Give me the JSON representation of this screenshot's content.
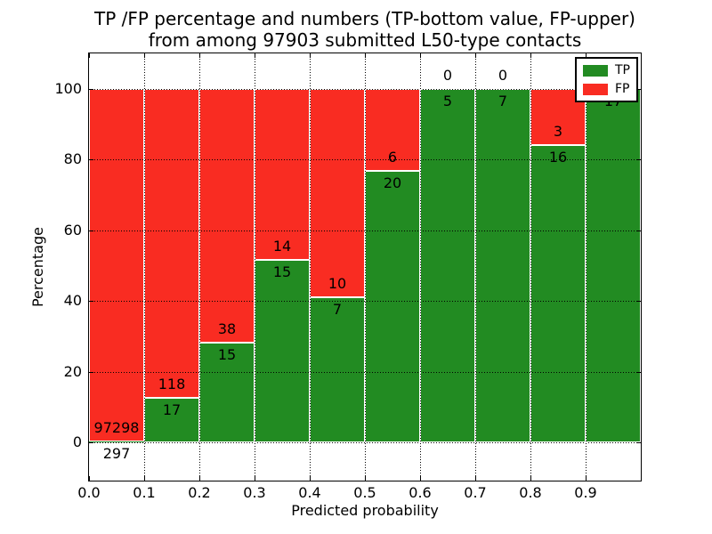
{
  "chart_data": {
    "type": "bar",
    "stacked": true,
    "title": "TP /FP percentage and numbers (TP-bottom value, FP-upper) from among 97903 submitted L50-type contacts",
    "title_lines": [
      "TP /FP percentage and numbers (TP-bottom value, FP-upper)",
      "from among 97903 submitted L50-type contacts"
    ],
    "xlabel": "Predicted probability",
    "ylabel": "Percentage",
    "x_tick_labels": [
      "0.0",
      "0.1",
      "0.2",
      "0.3",
      "0.4",
      "0.5",
      "0.6",
      "0.7",
      "0.8",
      "0.9"
    ],
    "y_tick_labels": [
      "0",
      "20",
      "40",
      "60",
      "80",
      "100"
    ],
    "y_tick_values": [
      0,
      20,
      40,
      60,
      80,
      100
    ],
    "xlim": [
      0.0,
      1.0
    ],
    "ylim": [
      -11,
      110
    ],
    "grid": "dotted",
    "legend_position": "upper right",
    "legend": [
      {
        "label": "TP",
        "color": "#228b22"
      },
      {
        "label": "FP",
        "color": "#f92c22"
      }
    ],
    "colors": {
      "tp_green": "#228b22",
      "fp_red": "#f92c22"
    },
    "bins": [
      {
        "range": "0.0-0.1",
        "tp": 297,
        "fp": 97298
      },
      {
        "range": "0.1-0.2",
        "tp": 17,
        "fp": 118
      },
      {
        "range": "0.2-0.3",
        "tp": 15,
        "fp": 38
      },
      {
        "range": "0.3-0.4",
        "tp": 15,
        "fp": 14
      },
      {
        "range": "0.4-0.5",
        "tp": 7,
        "fp": 10
      },
      {
        "range": "0.5-0.6",
        "tp": 20,
        "fp": 6
      },
      {
        "range": "0.6-0.7",
        "tp": 5,
        "fp": 0
      },
      {
        "range": "0.7-0.8",
        "tp": 7,
        "fp": 0
      },
      {
        "range": "0.8-0.9",
        "tp": 16,
        "fp": 3
      },
      {
        "range": "0.9-1.0",
        "tp": 17,
        "fp": 0
      }
    ]
  }
}
